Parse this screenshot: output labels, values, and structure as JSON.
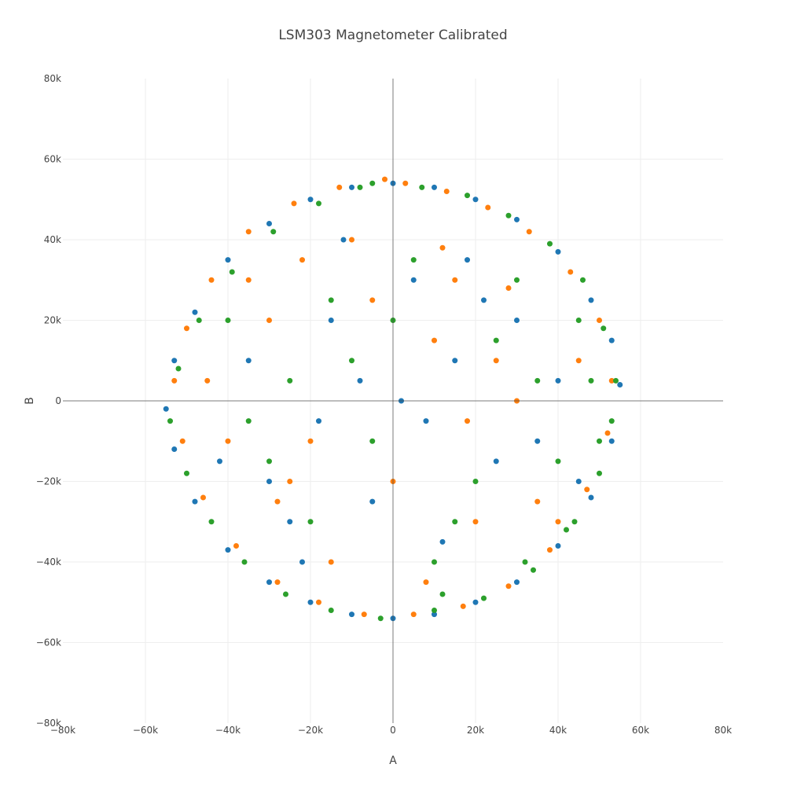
{
  "chart_data": {
    "type": "scatter",
    "title": "LSM303 Magnetometer Calibrated",
    "xlabel": "A",
    "ylabel": "B",
    "xlim": [
      -80000,
      80000
    ],
    "ylim": [
      -80000,
      80000
    ],
    "x_ticks": [
      -80000,
      -60000,
      -40000,
      -20000,
      0,
      20000,
      40000,
      60000,
      80000
    ],
    "y_ticks": [
      -80000,
      -60000,
      -40000,
      -20000,
      0,
      20000,
      40000,
      60000,
      80000
    ],
    "x_tick_labels": [
      "−80k",
      "−60k",
      "−40k",
      "−20k",
      "0",
      "20k",
      "40k",
      "60k",
      "80k"
    ],
    "y_tick_labels": [
      "−80k",
      "−60k",
      "−40k",
      "−20k",
      "0",
      "20k",
      "40k",
      "60k",
      "80k"
    ],
    "grid": true,
    "zero_lines": true,
    "legend": "none",
    "series": [
      {
        "color": "#1f77b4",
        "x": [
          0,
          10000,
          20000,
          30000,
          40000,
          48000,
          53000,
          55000,
          53000,
          48000,
          40000,
          30000,
          20000,
          10000,
          0,
          -10000,
          -20000,
          -30000,
          -40000,
          -48000,
          -53000,
          -55000,
          -53000,
          -48000,
          -40000,
          -30000,
          -20000,
          -10000,
          5000,
          -5000,
          15000,
          -15000,
          25000,
          -25000,
          8000,
          -8000,
          18000,
          -22000,
          30000,
          -35000,
          12000,
          -12000,
          2000,
          35000,
          -30000,
          22000,
          -18000,
          40000,
          -42000,
          45000
        ],
        "y": [
          54000,
          53000,
          50000,
          45000,
          37000,
          25000,
          15000,
          4000,
          -10000,
          -24000,
          -36000,
          -45000,
          -50000,
          -53000,
          -54000,
          -53000,
          -50000,
          -45000,
          -37000,
          -25000,
          -12000,
          -2000,
          10000,
          22000,
          35000,
          44000,
          50000,
          53000,
          30000,
          -25000,
          10000,
          20000,
          -15000,
          -30000,
          -5000,
          5000,
          35000,
          -40000,
          20000,
          10000,
          -35000,
          40000,
          0,
          -10000,
          -20000,
          25000,
          -5000,
          5000,
          -15000,
          -20000
        ]
      },
      {
        "color": "#ff7f0e",
        "x": [
          3000,
          13000,
          23000,
          33000,
          43000,
          50000,
          53000,
          52000,
          47000,
          38000,
          28000,
          17000,
          5000,
          -7000,
          -18000,
          -28000,
          -38000,
          -46000,
          -51000,
          -53000,
          -50000,
          -44000,
          -35000,
          -24000,
          -13000,
          -2000,
          10000,
          -20000,
          30000,
          -30000,
          20000,
          -10000,
          0,
          15000,
          -15000,
          25000,
          -25000,
          35000,
          -35000,
          45000,
          -40000,
          8000,
          -5000,
          40000,
          -45000,
          18000,
          -28000,
          28000,
          12000,
          -22000
        ],
        "y": [
          54000,
          52000,
          48000,
          42000,
          32000,
          20000,
          5000,
          -8000,
          -22000,
          -37000,
          -46000,
          -51000,
          -53000,
          -53000,
          -50000,
          -45000,
          -36000,
          -24000,
          -10000,
          5000,
          18000,
          30000,
          42000,
          49000,
          53000,
          55000,
          15000,
          -10000,
          0,
          20000,
          -30000,
          40000,
          -20000,
          30000,
          -40000,
          10000,
          -20000,
          -25000,
          30000,
          10000,
          -10000,
          -45000,
          25000,
          -30000,
          5000,
          -5000,
          -25000,
          28000,
          38000,
          35000
        ]
      },
      {
        "color": "#2ca02c",
        "x": [
          -5000,
          7000,
          18000,
          28000,
          38000,
          46000,
          51000,
          54000,
          53000,
          50000,
          44000,
          34000,
          22000,
          10000,
          -3000,
          -15000,
          -26000,
          -36000,
          -44000,
          -50000,
          -54000,
          -52000,
          -47000,
          -39000,
          -29000,
          -18000,
          -8000,
          25000,
          -35000,
          5000,
          -15000,
          15000,
          -25000,
          35000,
          -5000,
          20000,
          -40000,
          40000,
          0,
          -20000,
          30000,
          -10000,
          10000,
          -30000,
          45000,
          32000,
          48000,
          50000,
          42000,
          12000
        ],
        "y": [
          54000,
          53000,
          51000,
          46000,
          39000,
          30000,
          18000,
          5000,
          -5000,
          -18000,
          -30000,
          -42000,
          -49000,
          -52000,
          -54000,
          -52000,
          -48000,
          -40000,
          -30000,
          -18000,
          -5000,
          8000,
          20000,
          32000,
          42000,
          49000,
          53000,
          15000,
          -5000,
          35000,
          25000,
          -30000,
          5000,
          5000,
          -10000,
          -20000,
          20000,
          -15000,
          20000,
          -30000,
          30000,
          10000,
          -40000,
          -15000,
          20000,
          -40000,
          5000,
          -10000,
          -32000,
          -48000
        ]
      }
    ]
  }
}
